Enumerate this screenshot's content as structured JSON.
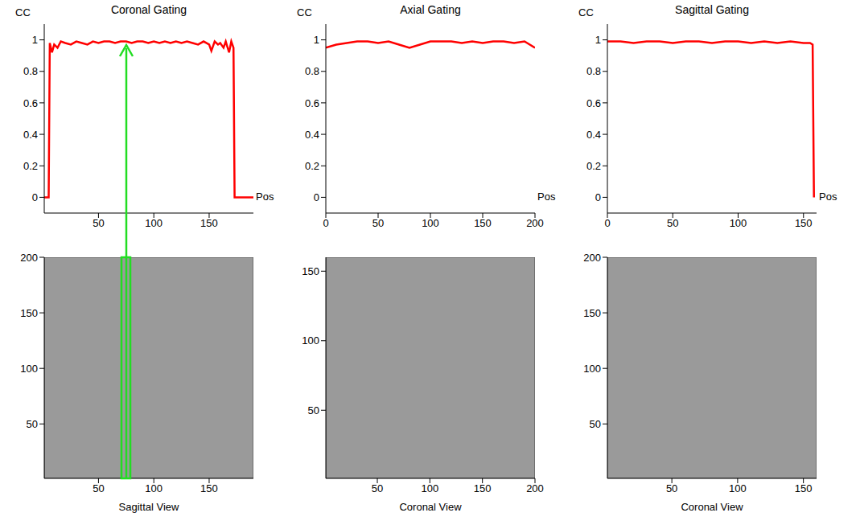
{
  "chart_data": [
    {
      "type": "line",
      "title": "Coronal Gating",
      "x_label": "Pos",
      "y_label": "CC",
      "color": "#ff0000",
      "x": [
        1,
        5,
        6,
        8,
        10,
        13,
        16,
        20,
        25,
        30,
        35,
        40,
        45,
        50,
        55,
        60,
        65,
        70,
        75,
        80,
        85,
        90,
        95,
        100,
        105,
        110,
        115,
        120,
        125,
        130,
        135,
        140,
        145,
        150,
        152,
        155,
        158,
        160,
        163,
        165,
        168,
        170,
        172,
        173,
        175,
        180,
        185,
        190
      ],
      "values": [
        0,
        0,
        0.98,
        0.92,
        0.97,
        0.95,
        0.99,
        0.98,
        0.97,
        0.99,
        0.98,
        0.97,
        0.99,
        0.98,
        0.99,
        0.99,
        0.98,
        0.99,
        0.99,
        0.98,
        0.99,
        0.99,
        0.98,
        0.99,
        0.98,
        0.99,
        0.98,
        0.99,
        0.98,
        0.99,
        0.98,
        0.97,
        0.99,
        0.97,
        0.93,
        0.99,
        0.97,
        0.98,
        0.95,
        0.99,
        0.92,
        0.99,
        0.95,
        0,
        0,
        0,
        0,
        0
      ],
      "xlim": [
        1,
        190
      ],
      "xticks": [
        50,
        100,
        150
      ],
      "ylim": [
        -0.1,
        1.1
      ],
      "yticks": [
        0,
        0.2,
        0.4,
        0.6,
        0.8,
        1
      ]
    },
    {
      "type": "line",
      "title": "Axial Gating",
      "x_label": "Pos",
      "y_label": "CC",
      "color": "#ff0000",
      "x": [
        0,
        10,
        20,
        30,
        40,
        50,
        60,
        70,
        80,
        90,
        100,
        110,
        120,
        130,
        140,
        150,
        160,
        170,
        180,
        190,
        200
      ],
      "values": [
        0.95,
        0.97,
        0.98,
        0.99,
        0.99,
        0.98,
        0.99,
        0.97,
        0.95,
        0.97,
        0.99,
        0.99,
        0.99,
        0.98,
        0.99,
        0.98,
        0.99,
        0.99,
        0.98,
        0.99,
        0.95
      ],
      "xlim": [
        0,
        200
      ],
      "xticks": [
        0,
        50,
        100,
        150,
        200
      ],
      "ylim": [
        -0.1,
        1.1
      ],
      "yticks": [
        0,
        0.2,
        0.4,
        0.6,
        0.8,
        1
      ]
    },
    {
      "type": "line",
      "title": "Sagittal Gating",
      "x_label": "Pos",
      "y_label": "CC",
      "color": "#ff0000",
      "x": [
        0,
        10,
        20,
        30,
        40,
        50,
        60,
        70,
        80,
        90,
        100,
        110,
        120,
        130,
        140,
        150,
        155,
        157,
        158
      ],
      "values": [
        0.99,
        0.99,
        0.98,
        0.99,
        0.99,
        0.98,
        0.99,
        0.99,
        0.98,
        0.99,
        0.99,
        0.98,
        0.99,
        0.98,
        0.99,
        0.98,
        0.98,
        0.97,
        0
      ],
      "xlim": [
        0,
        160
      ],
      "xticks": [
        0,
        50,
        100,
        150
      ],
      "ylim": [
        -0.1,
        1.1
      ],
      "yticks": [
        0,
        0.2,
        0.4,
        0.6,
        0.8,
        1
      ]
    },
    {
      "type": "image",
      "x_label": "Sagittal View",
      "xlim": [
        1,
        190
      ],
      "xticks": [
        50,
        100,
        150
      ],
      "ylim": [
        1,
        200
      ],
      "yticks": [
        50,
        100,
        150,
        200
      ]
    },
    {
      "type": "image",
      "x_label": "Coronal View",
      "xlim": [
        1,
        200
      ],
      "xticks": [
        50,
        100,
        150,
        200
      ],
      "ylim": [
        1,
        160
      ],
      "yticks": [
        50,
        100,
        150
      ]
    },
    {
      "type": "image",
      "x_label": "Coronal View",
      "xlim": [
        1,
        160
      ],
      "xticks": [
        50,
        100,
        150
      ],
      "ylim": [
        1,
        200
      ],
      "yticks": [
        50,
        100,
        150,
        200
      ]
    }
  ]
}
